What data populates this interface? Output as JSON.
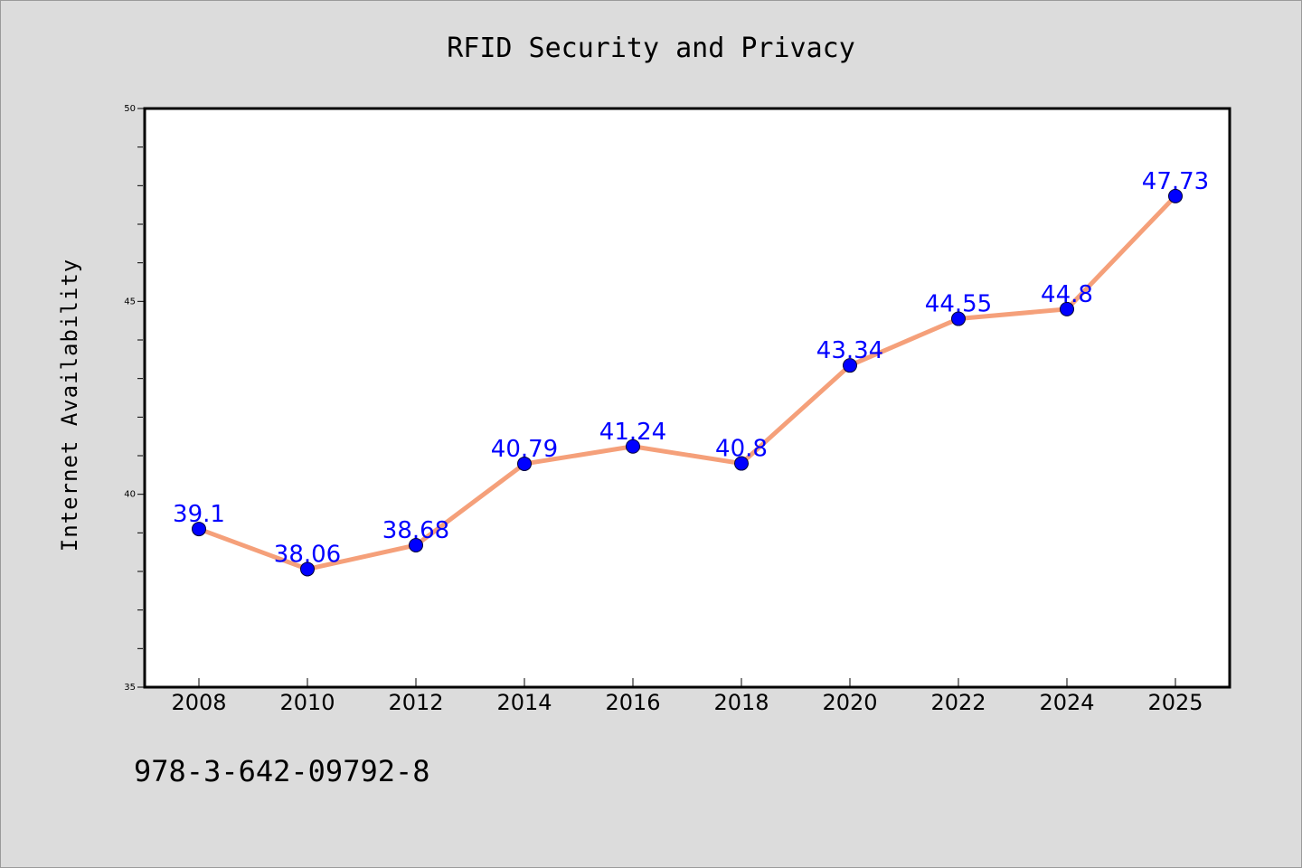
{
  "chart_data": {
    "type": "line",
    "title": "RFID Security and Privacy",
    "xlabel": "",
    "ylabel": "Internet Availability",
    "categories": [
      "2008",
      "2010",
      "2012",
      "2014",
      "2016",
      "2018",
      "2020",
      "2022",
      "2024",
      "2025"
    ],
    "series": [
      {
        "values": [
          39.1,
          38.06,
          38.68,
          40.79,
          41.24,
          40.8,
          43.34,
          44.55,
          44.8,
          47.73
        ],
        "labels": [
          "39.1",
          "38.06",
          "38.68",
          "40.79",
          "41.24",
          "40.8",
          "43.34",
          "44.55",
          "44.8",
          "47.73"
        ],
        "line_color": "#f5a07a",
        "marker_color": "#0000ff",
        "label_color": "#0000ff"
      }
    ],
    "ylim": [
      35,
      50
    ],
    "yticks": [
      "35",
      "40",
      "45",
      "50"
    ],
    "grid": false,
    "legend": "none"
  },
  "footer": {
    "isbn": "978-3-642-09792-8"
  },
  "colors": {
    "background": "#dcdcdc",
    "plot_background": "#ffffff",
    "axis": "#000000"
  }
}
